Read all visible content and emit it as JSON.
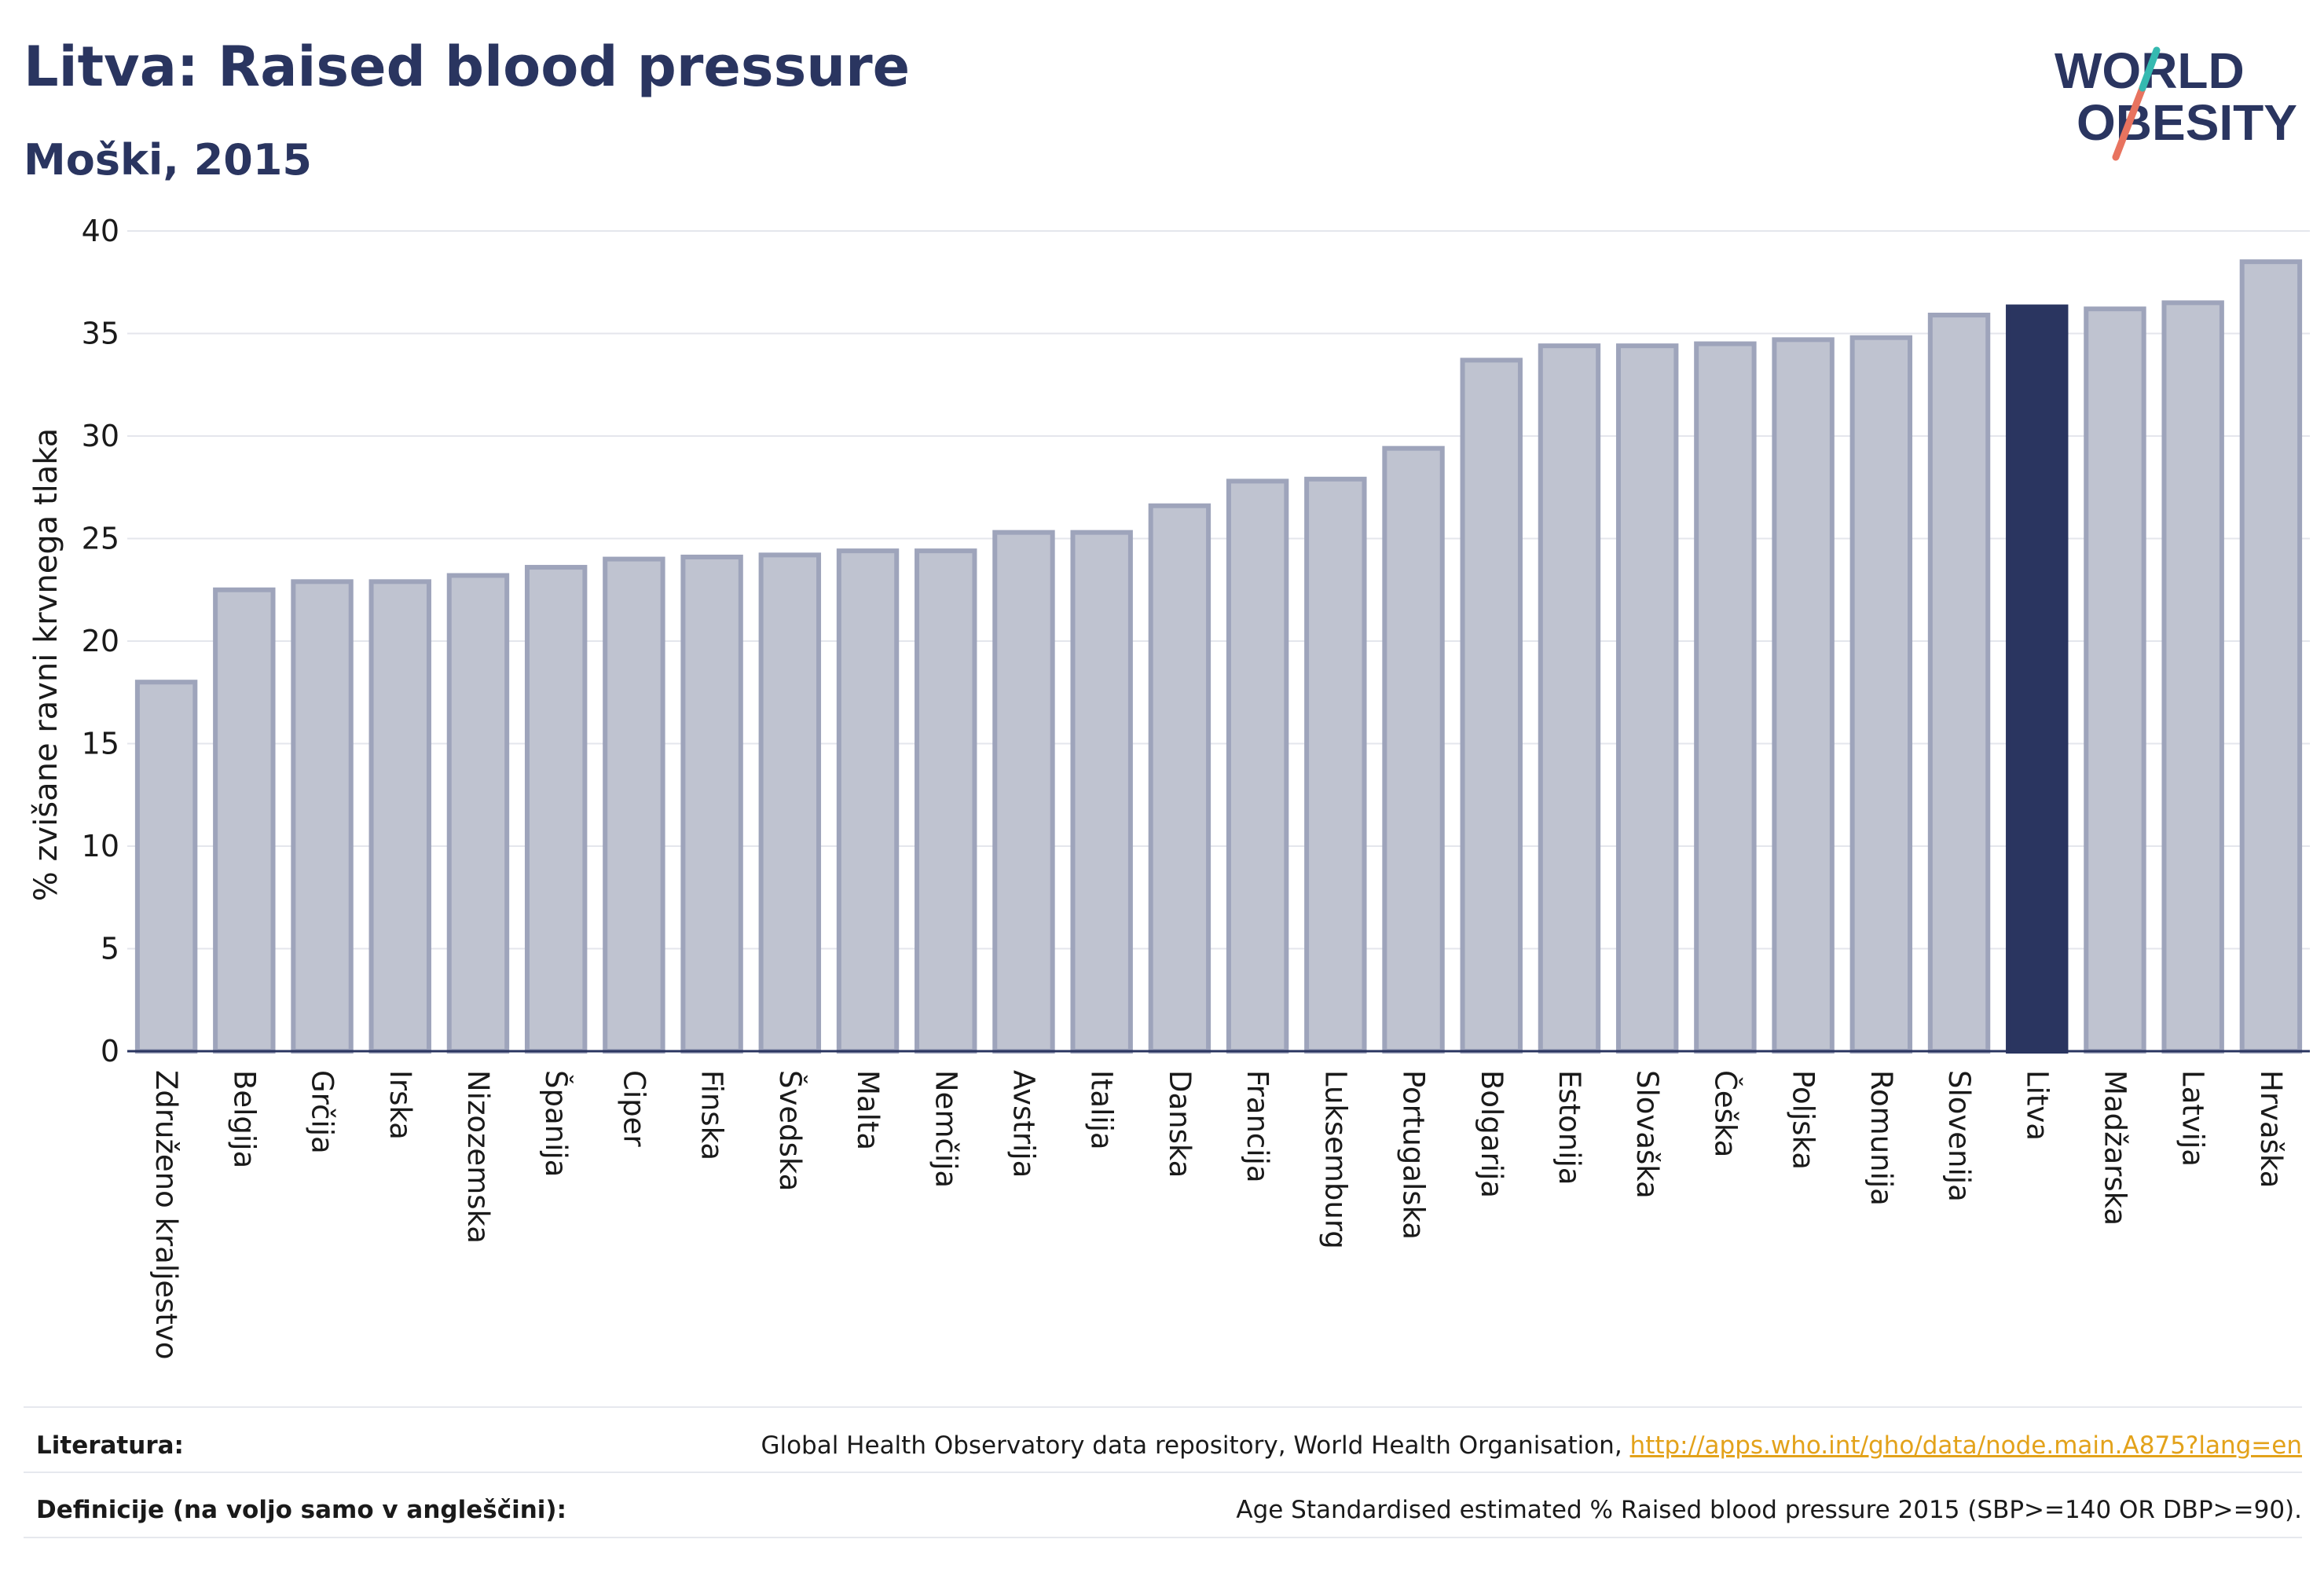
{
  "header": {
    "title": "Litva: Raised blood pressure",
    "subtitle": "Moški, 2015"
  },
  "logo": {
    "line1": "WORLD",
    "line2": "OBESITY"
  },
  "colors": {
    "bar": "#bfc3d0",
    "bar_stroke": "#9ea4bb",
    "highlight": "#2a3560",
    "grid": "#e4e6ec",
    "axis": "#2a3560"
  },
  "chart_data": {
    "type": "bar",
    "ylabel": "% zvišane ravni krvnega tlaka",
    "ylim": [
      0,
      40
    ],
    "yticks": [
      0,
      5,
      10,
      15,
      20,
      25,
      30,
      35,
      40
    ],
    "grid": true,
    "highlight": "Litva",
    "categories": [
      "Združeno kraljestvo",
      "Belgija",
      "Grčija",
      "Irska",
      "Nizozemska",
      "Španija",
      "Ciper",
      "Finska",
      "Švedska",
      "Malta",
      "Nemčija",
      "Avstrija",
      "Italija",
      "Danska",
      "Francija",
      "Luksemburg",
      "Portugalska",
      "Bolgarija",
      "Estonija",
      "Slovaška",
      "Češka",
      "Poljska",
      "Romunija",
      "Slovenija",
      "Litva",
      "Madžarska",
      "Latvija",
      "Hrvaška"
    ],
    "values": [
      18.0,
      22.5,
      22.9,
      22.9,
      23.2,
      23.6,
      24.0,
      24.1,
      24.2,
      24.4,
      24.4,
      25.3,
      25.3,
      26.6,
      27.8,
      27.9,
      29.4,
      33.7,
      34.4,
      34.4,
      34.5,
      34.7,
      34.8,
      35.9,
      36.3,
      36.2,
      36.5,
      38.5
    ]
  },
  "footer": {
    "sources_label": "Literatura:",
    "sources_text": "Global Health Observatory data repository, World Health Organisation,",
    "sources_link": "http://apps.who.int/gho/data/node.main.A875?lang=en",
    "definition_label": "Definicije (na voljo samo v angleščini):",
    "definition_text": "Age Standardised estimated % Raised blood pressure 2015 (SBP>=140 OR DBP>=90)."
  }
}
